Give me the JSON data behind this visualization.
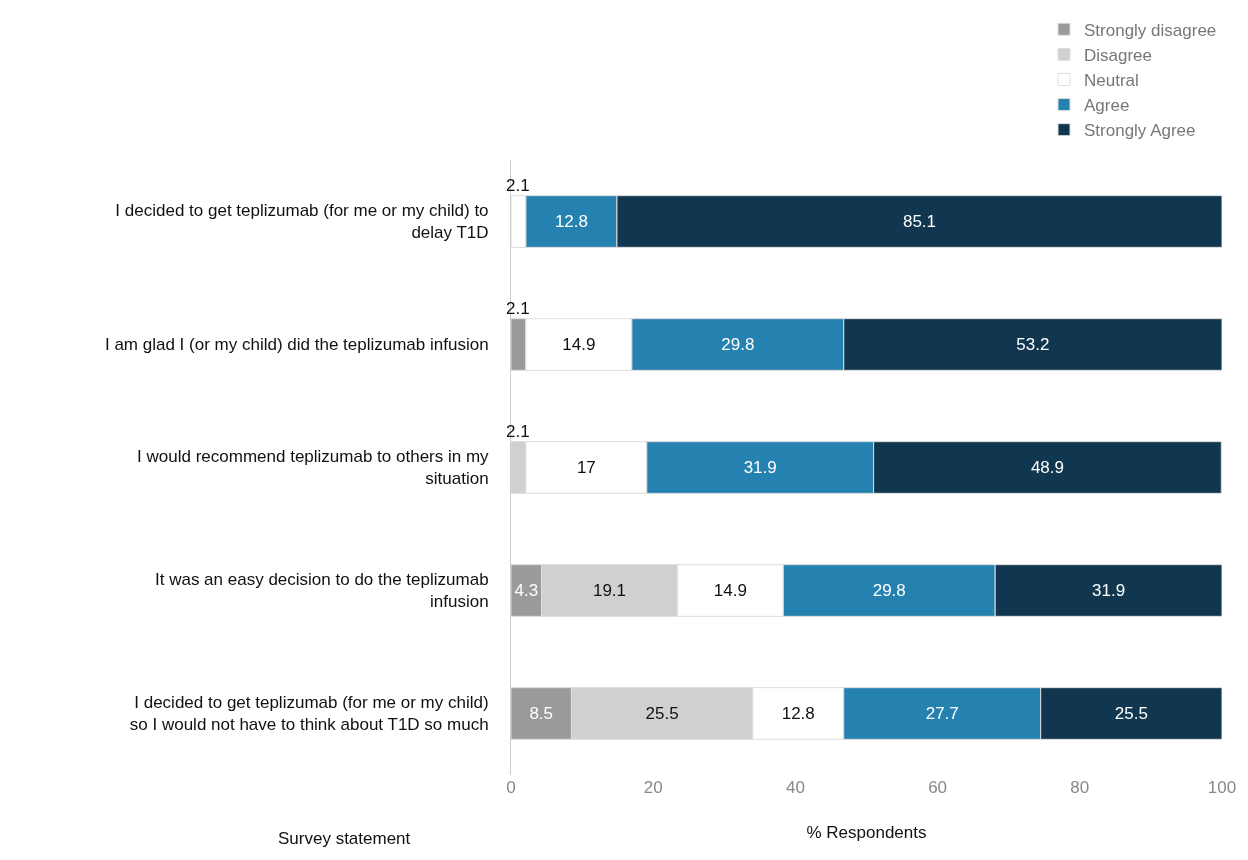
{
  "chart_data": {
    "type": "bar",
    "orientation": "horizontal",
    "stacked": true,
    "categories": [
      "I decided to get teplizumab (for me or my child) to\ndelay T1D",
      "I am glad I (or my child) did the teplizumab infusion",
      "I would recommend teplizumab to others in my\nsituation",
      "It was an easy decision to do the teplizumab\ninfusion",
      "I decided to get teplizumab (for me or my child)\nso I would not have to think about T1D so much"
    ],
    "series": [
      {
        "name": "Strongly disagree",
        "color": "#9a9a9a",
        "values": [
          0,
          2.1,
          0,
          4.3,
          8.5
        ],
        "value_labels": [
          null,
          "2.1",
          null,
          "4.3",
          "8.5"
        ]
      },
      {
        "name": "Disagree",
        "color": "#cfd0cf",
        "values": [
          0,
          0,
          2.1,
          19.1,
          25.5
        ],
        "value_labels": [
          null,
          null,
          "2.1",
          "19.1",
          "25.5"
        ]
      },
      {
        "name": "Neutral",
        "color": "#ffffff",
        "values": [
          2.1,
          14.9,
          17,
          14.9,
          12.8
        ],
        "value_labels": [
          "2.1",
          "14.9",
          "17",
          "14.9",
          "12.8"
        ]
      },
      {
        "name": "Agree",
        "color": "#2581b0",
        "values": [
          12.8,
          29.8,
          31.9,
          29.8,
          27.7
        ],
        "value_labels": [
          "12.8",
          "29.8",
          "31.9",
          "29.8",
          "27.7"
        ]
      },
      {
        "name": "Strongly Agree",
        "color": "#10374f",
        "values": [
          85.1,
          53.2,
          48.9,
          31.9,
          25.5
        ],
        "value_labels": [
          "85.1",
          "53.2",
          "48.9",
          "31.9",
          "25.5"
        ]
      }
    ],
    "xlim": [
      0,
      100
    ],
    "xticks": [
      0,
      20,
      40,
      60,
      80,
      100
    ],
    "xlabel": "% Respondents",
    "ylabel": "Survey statement",
    "grid": false,
    "legend": "top right"
  }
}
